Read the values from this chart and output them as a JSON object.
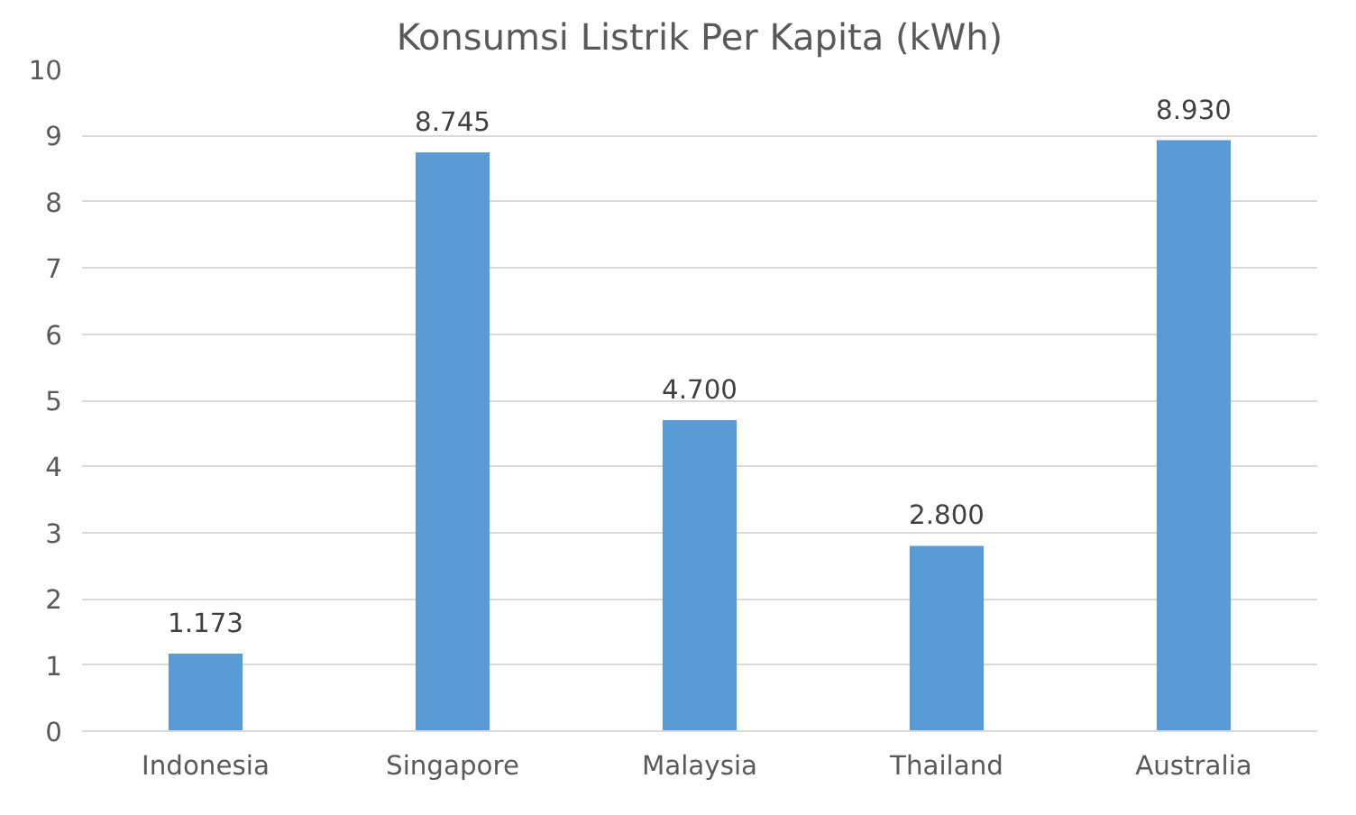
{
  "chart_data": {
    "type": "bar",
    "title": "Konsumsi Listrik Per Kapita (kWh)",
    "categories": [
      "Indonesia",
      "Singapore",
      "Malaysia",
      "Thailand",
      "Australia"
    ],
    "values": [
      1.173,
      8.745,
      4.7,
      2.8,
      8.93
    ],
    "value_labels": [
      "1.173",
      "8.745",
      "4.700",
      "2.800",
      "8.930"
    ],
    "color": "#5b9bd5",
    "ylim": [
      0,
      10
    ],
    "yticks": [
      0,
      1,
      2,
      3,
      4,
      5,
      6,
      7,
      8,
      9,
      10
    ],
    "grid": "y"
  }
}
